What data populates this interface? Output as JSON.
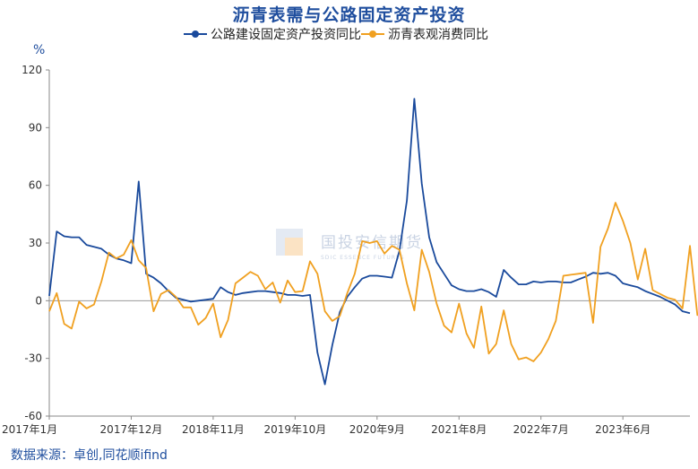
{
  "title": "沥青表需与公路固定资产投资",
  "unit": "%",
  "source": "数据来源：卓创,同花顺ifind",
  "watermark": {
    "name": "国投安信期货",
    "sub": "SDIC ESSENCE FUTURES"
  },
  "colors": {
    "highway": "#1a4a9c",
    "asphalt": "#f0a020",
    "title": "#1f4e9e"
  },
  "chart_data": {
    "type": "line",
    "title": "沥青表需与公路固定资产投资",
    "ylabel": "%",
    "ylim": [
      -60,
      120
    ],
    "yticks": [
      -60,
      -30,
      0,
      30,
      60,
      90,
      120
    ],
    "x_start": "2017-01",
    "x_tick_labels": [
      "2017年1月",
      "2017年12月",
      "2018年11月",
      "2019年10月",
      "2020年9月",
      "2021年8月",
      "2022年7月",
      "2023年6月"
    ],
    "x_tick_index": [
      0,
      11,
      22,
      33,
      44,
      55,
      66,
      77
    ],
    "grid": false,
    "legend": "top",
    "series": [
      {
        "name": "公路建设固定资产投资同比",
        "color": "#1a4a9c",
        "values": [
          2.5,
          36,
          33.5,
          33,
          33,
          29,
          28,
          27,
          24,
          22,
          21,
          19.5,
          62,
          14,
          12,
          9,
          5,
          1.5,
          0.5,
          -0.5,
          0,
          0.5,
          1,
          7,
          4.5,
          3,
          4,
          4.5,
          5,
          5,
          4.5,
          4,
          3,
          3,
          2.5,
          3,
          -27,
          -43.5,
          -23,
          -6,
          2,
          7,
          11.5,
          13,
          13,
          12.5,
          12,
          26,
          52,
          105,
          61,
          33,
          20,
          14,
          8,
          6,
          5,
          5,
          6,
          4.5,
          2,
          16,
          12,
          8.5,
          8.5,
          10,
          9.5,
          10,
          10,
          9.5,
          9.5,
          11,
          12.5,
          14.5,
          14,
          14.5,
          13,
          9,
          8,
          7,
          5,
          3.5,
          2,
          0,
          -2,
          -5.5,
          -6.5
        ]
      },
      {
        "name": "沥青表观消费同比",
        "color": "#f0a020",
        "values": [
          -5.5,
          4,
          -12,
          -14.5,
          -0.5,
          -4,
          -2,
          10,
          25,
          22,
          24,
          31.5,
          21,
          17,
          -5.5,
          3.5,
          5.5,
          2,
          -3.5,
          -3.5,
          -12.5,
          -9,
          -1.5,
          -19,
          -10,
          9,
          12,
          15,
          13,
          6,
          9.5,
          -1,
          10.5,
          4.5,
          5,
          20.5,
          14,
          -5.5,
          -10.5,
          -8,
          4,
          14,
          31,
          30,
          31,
          24.5,
          28.5,
          26.5,
          9,
          -5,
          26.5,
          15,
          -1.5,
          -13,
          -16.5,
          -1.5,
          -17,
          -24.5,
          -3,
          -27.5,
          -22.5,
          -5,
          -22.5,
          -30.5,
          -29.5,
          -31.5,
          -27,
          -20,
          -10.5,
          13,
          13.5,
          14,
          14.5,
          -11.5,
          28,
          37.5,
          51,
          41.5,
          30,
          11,
          27,
          5.5,
          3.5,
          1.5,
          0.5,
          -4,
          28.5,
          -7.5,
          -4.5
        ]
      }
    ]
  }
}
